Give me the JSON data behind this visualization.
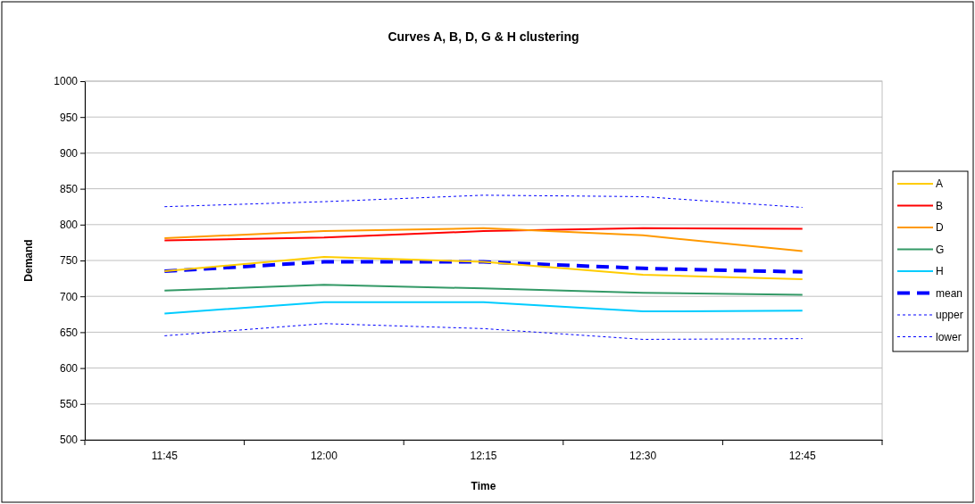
{
  "chart_data": {
    "type": "line",
    "title": "Curves A, B, D, G & H clustering",
    "xlabel": "Time",
    "ylabel": "Demand",
    "categories": [
      "11:45",
      "12:00",
      "12:15",
      "12:30",
      "12:45"
    ],
    "ylim": [
      500,
      1000
    ],
    "yticks": [
      500,
      550,
      600,
      650,
      700,
      750,
      800,
      850,
      900,
      950,
      1000
    ],
    "grid": "y",
    "legend": "right",
    "marker": "none",
    "series": [
      {
        "name": "A",
        "color": "#ffcc00",
        "values": [
          735,
          755,
          748,
          730,
          724
        ]
      },
      {
        "name": "B",
        "color": "#ff0000",
        "values": [
          778,
          782,
          791,
          795,
          794
        ]
      },
      {
        "name": "D",
        "color": "#ff9900",
        "values": [
          781,
          791,
          795,
          785,
          763
        ]
      },
      {
        "name": "G",
        "color": "#339966",
        "values": [
          708,
          716,
          711,
          705,
          702
        ]
      },
      {
        "name": "H",
        "color": "#00ccff",
        "values": [
          676,
          692,
          692,
          679,
          680
        ]
      },
      {
        "name": "mean",
        "color": "#0000ff",
        "line_style": "dashed",
        "values": [
          735,
          748,
          748,
          739,
          734
        ]
      },
      {
        "name": "upper",
        "color": "#0000ff",
        "line_style": "dotted",
        "values": [
          825,
          832,
          841,
          839,
          824
        ]
      },
      {
        "name": "lower",
        "color": "#0000ff",
        "line_style": "dotted",
        "values": [
          645,
          662,
          655,
          640,
          641
        ]
      }
    ]
  }
}
